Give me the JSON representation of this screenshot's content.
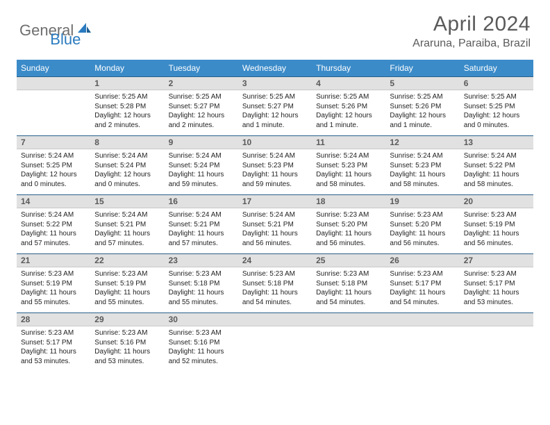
{
  "logo": {
    "part1": "General",
    "part2": "Blue"
  },
  "title": "April 2024",
  "location": "Araruna, Paraiba, Brazil",
  "colors": {
    "headerBlue": "#3b8bc9",
    "ruleBlue": "#265f8a",
    "dayBarGray": "#e1e1e1",
    "textGray": "#5a5a5a",
    "bodyText": "#222222",
    "logoGray": "#6e6e6e",
    "logoBlue": "#2a7bbf"
  },
  "dow": [
    "Sunday",
    "Monday",
    "Tuesday",
    "Wednesday",
    "Thursday",
    "Friday",
    "Saturday"
  ],
  "weeks": [
    {
      "nums": [
        "",
        "1",
        "2",
        "3",
        "4",
        "5",
        "6"
      ],
      "cells": [
        null,
        {
          "sunrise": "5:25 AM",
          "sunset": "5:28 PM",
          "daylight": "12 hours and 2 minutes."
        },
        {
          "sunrise": "5:25 AM",
          "sunset": "5:27 PM",
          "daylight": "12 hours and 2 minutes."
        },
        {
          "sunrise": "5:25 AM",
          "sunset": "5:27 PM",
          "daylight": "12 hours and 1 minute."
        },
        {
          "sunrise": "5:25 AM",
          "sunset": "5:26 PM",
          "daylight": "12 hours and 1 minute."
        },
        {
          "sunrise": "5:25 AM",
          "sunset": "5:26 PM",
          "daylight": "12 hours and 1 minute."
        },
        {
          "sunrise": "5:25 AM",
          "sunset": "5:25 PM",
          "daylight": "12 hours and 0 minutes."
        }
      ]
    },
    {
      "nums": [
        "7",
        "8",
        "9",
        "10",
        "11",
        "12",
        "13"
      ],
      "cells": [
        {
          "sunrise": "5:24 AM",
          "sunset": "5:25 PM",
          "daylight": "12 hours and 0 minutes."
        },
        {
          "sunrise": "5:24 AM",
          "sunset": "5:24 PM",
          "daylight": "12 hours and 0 minutes."
        },
        {
          "sunrise": "5:24 AM",
          "sunset": "5:24 PM",
          "daylight": "11 hours and 59 minutes."
        },
        {
          "sunrise": "5:24 AM",
          "sunset": "5:23 PM",
          "daylight": "11 hours and 59 minutes."
        },
        {
          "sunrise": "5:24 AM",
          "sunset": "5:23 PM",
          "daylight": "11 hours and 58 minutes."
        },
        {
          "sunrise": "5:24 AM",
          "sunset": "5:23 PM",
          "daylight": "11 hours and 58 minutes."
        },
        {
          "sunrise": "5:24 AM",
          "sunset": "5:22 PM",
          "daylight": "11 hours and 58 minutes."
        }
      ]
    },
    {
      "nums": [
        "14",
        "15",
        "16",
        "17",
        "18",
        "19",
        "20"
      ],
      "cells": [
        {
          "sunrise": "5:24 AM",
          "sunset": "5:22 PM",
          "daylight": "11 hours and 57 minutes."
        },
        {
          "sunrise": "5:24 AM",
          "sunset": "5:21 PM",
          "daylight": "11 hours and 57 minutes."
        },
        {
          "sunrise": "5:24 AM",
          "sunset": "5:21 PM",
          "daylight": "11 hours and 57 minutes."
        },
        {
          "sunrise": "5:24 AM",
          "sunset": "5:21 PM",
          "daylight": "11 hours and 56 minutes."
        },
        {
          "sunrise": "5:23 AM",
          "sunset": "5:20 PM",
          "daylight": "11 hours and 56 minutes."
        },
        {
          "sunrise": "5:23 AM",
          "sunset": "5:20 PM",
          "daylight": "11 hours and 56 minutes."
        },
        {
          "sunrise": "5:23 AM",
          "sunset": "5:19 PM",
          "daylight": "11 hours and 56 minutes."
        }
      ]
    },
    {
      "nums": [
        "21",
        "22",
        "23",
        "24",
        "25",
        "26",
        "27"
      ],
      "cells": [
        {
          "sunrise": "5:23 AM",
          "sunset": "5:19 PM",
          "daylight": "11 hours and 55 minutes."
        },
        {
          "sunrise": "5:23 AM",
          "sunset": "5:19 PM",
          "daylight": "11 hours and 55 minutes."
        },
        {
          "sunrise": "5:23 AM",
          "sunset": "5:18 PM",
          "daylight": "11 hours and 55 minutes."
        },
        {
          "sunrise": "5:23 AM",
          "sunset": "5:18 PM",
          "daylight": "11 hours and 54 minutes."
        },
        {
          "sunrise": "5:23 AM",
          "sunset": "5:18 PM",
          "daylight": "11 hours and 54 minutes."
        },
        {
          "sunrise": "5:23 AM",
          "sunset": "5:17 PM",
          "daylight": "11 hours and 54 minutes."
        },
        {
          "sunrise": "5:23 AM",
          "sunset": "5:17 PM",
          "daylight": "11 hours and 53 minutes."
        }
      ]
    },
    {
      "nums": [
        "28",
        "29",
        "30",
        "",
        "",
        "",
        ""
      ],
      "cells": [
        {
          "sunrise": "5:23 AM",
          "sunset": "5:17 PM",
          "daylight": "11 hours and 53 minutes."
        },
        {
          "sunrise": "5:23 AM",
          "sunset": "5:16 PM",
          "daylight": "11 hours and 53 minutes."
        },
        {
          "sunrise": "5:23 AM",
          "sunset": "5:16 PM",
          "daylight": "11 hours and 52 minutes."
        },
        null,
        null,
        null,
        null
      ]
    }
  ],
  "labels": {
    "sunrise": "Sunrise: ",
    "sunset": "Sunset: ",
    "daylight": "Daylight: "
  }
}
